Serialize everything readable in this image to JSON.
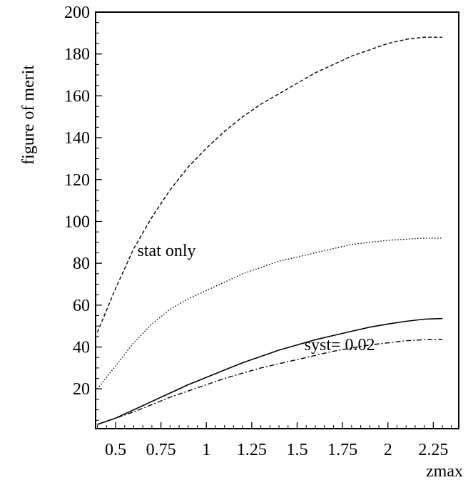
{
  "chart_data": {
    "type": "line",
    "title": "",
    "xlabel": "zmax",
    "ylabel": "figure of merit",
    "xlim": [
      0.39,
      2.39
    ],
    "ylim": [
      1,
      200
    ],
    "x_ticks": [
      0.5,
      0.75,
      1,
      1.25,
      1.5,
      1.75,
      2,
      2.25
    ],
    "x_tick_labels": [
      "0.5",
      "0.75",
      "1",
      "1.25",
      "1.5",
      "1.75",
      "2",
      "2.25"
    ],
    "y_ticks": [
      20,
      40,
      60,
      80,
      100,
      120,
      140,
      160,
      180,
      200
    ],
    "y_tick_labels": [
      "20",
      "40",
      "60",
      "80",
      "100",
      "120",
      "140",
      "160",
      "180",
      "200"
    ],
    "grid": false,
    "legend": "none",
    "annotations": [
      {
        "text": "stat only",
        "x": 0.62,
        "y": 83.5
      },
      {
        "text": "syst= 0.02",
        "x": 1.54,
        "y": 38.5
      }
    ],
    "series": [
      {
        "style": "dashed",
        "x": [
          0.4,
          0.5,
          0.6,
          0.7,
          0.8,
          0.9,
          1.0,
          1.1,
          1.2,
          1.3,
          1.4,
          1.5,
          1.6,
          1.7,
          1.8,
          1.9,
          2.0,
          2.1,
          2.2,
          2.3
        ],
        "y": [
          47,
          68,
          87,
          102,
          115,
          126,
          135,
          143,
          150,
          156,
          161,
          166,
          171,
          175,
          179,
          182,
          185,
          187,
          188,
          188
        ]
      },
      {
        "style": "dotted",
        "x": [
          0.4,
          0.5,
          0.6,
          0.7,
          0.8,
          0.9,
          1.0,
          1.1,
          1.2,
          1.3,
          1.4,
          1.5,
          1.6,
          1.7,
          1.8,
          1.9,
          2.0,
          2.1,
          2.2,
          2.3
        ],
        "y": [
          20,
          31,
          42,
          51,
          58,
          63,
          67,
          71,
          75,
          78,
          81,
          83,
          85,
          87,
          89,
          90,
          91,
          91.5,
          92,
          92
        ]
      },
      {
        "style": "solid",
        "x": [
          0.4,
          0.5,
          0.6,
          0.7,
          0.8,
          0.9,
          1.0,
          1.1,
          1.2,
          1.3,
          1.4,
          1.5,
          1.6,
          1.7,
          1.8,
          1.9,
          2.0,
          2.1,
          2.2,
          2.3
        ],
        "y": [
          3,
          6,
          10,
          14,
          18,
          22,
          25.5,
          29,
          32.5,
          35.5,
          38.5,
          41,
          43.5,
          45.5,
          47.5,
          49.5,
          51,
          52.3,
          53.3,
          53.6
        ]
      },
      {
        "style": "dashdot",
        "x": [
          0.4,
          0.5,
          0.6,
          0.7,
          0.8,
          0.9,
          1.0,
          1.1,
          1.2,
          1.3,
          1.4,
          1.5,
          1.6,
          1.7,
          1.8,
          1.9,
          2.0,
          2.1,
          2.2,
          2.3
        ],
        "y": [
          3,
          6,
          9,
          12.5,
          16,
          19,
          22,
          25,
          27.5,
          30,
          32,
          34,
          36,
          38,
          39.5,
          41,
          42,
          43,
          43.5,
          43.6
        ]
      }
    ]
  }
}
